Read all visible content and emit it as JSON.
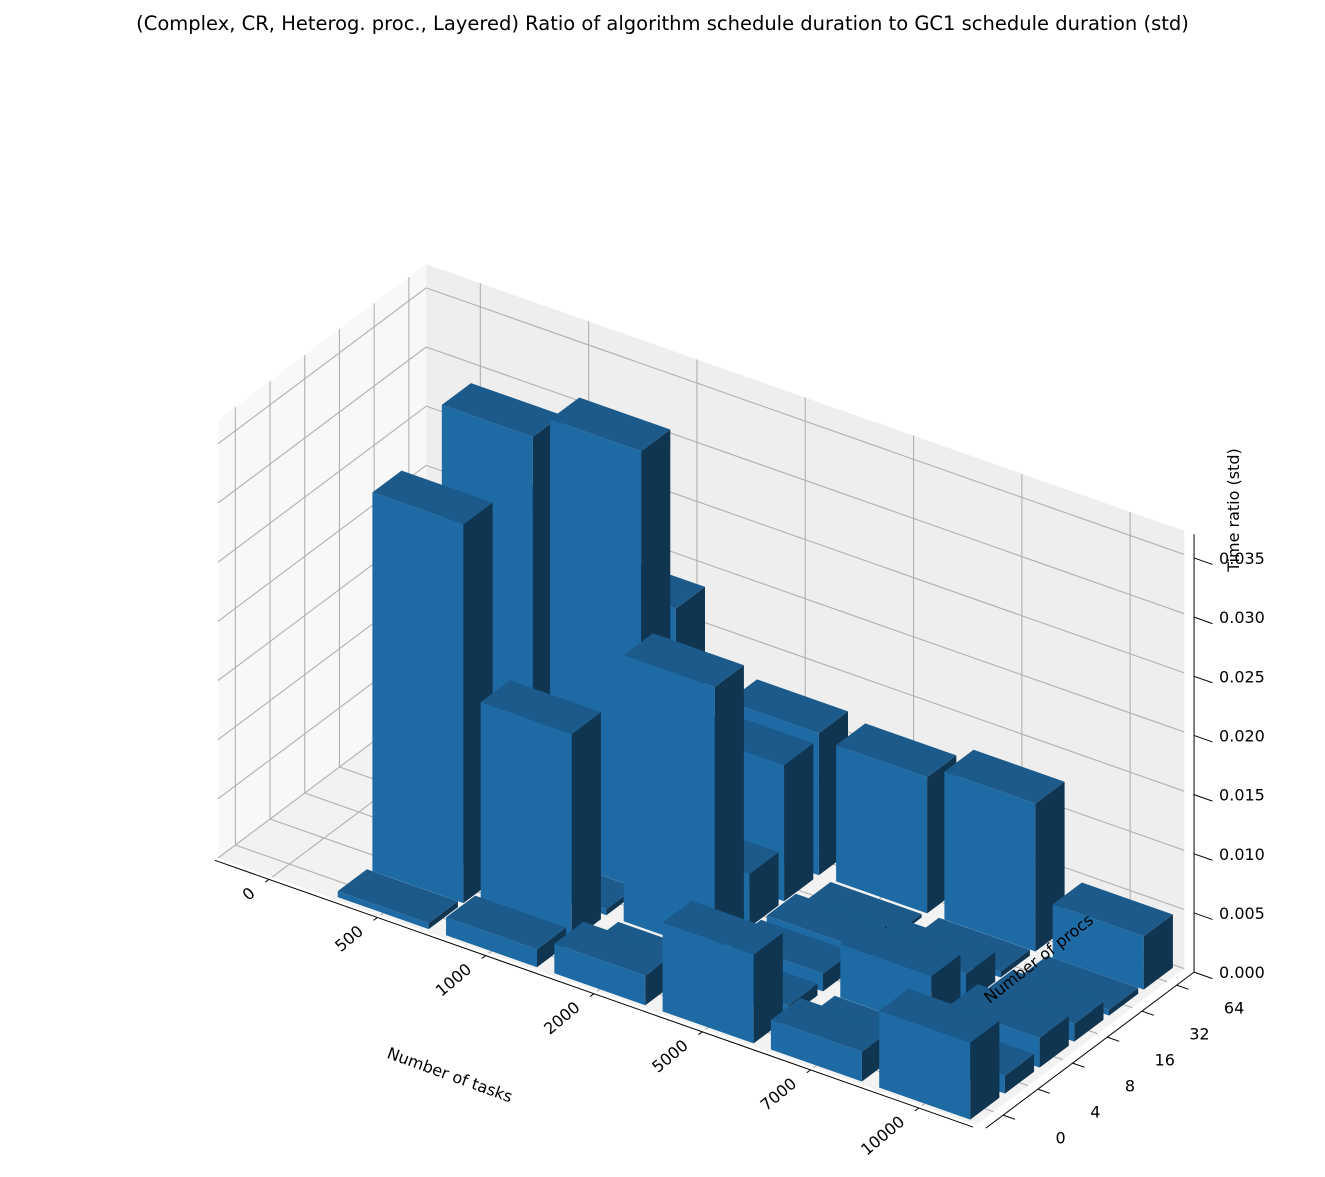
{
  "chart_data": {
    "type": "bar3d",
    "title": "(Complex, CR, Heterog. proc., Layered) Ratio of algorithm schedule duration to GC1 schedule duration (std)",
    "xlabel": "Number of tasks",
    "ylabel": "Number of procs",
    "zlabel": "Time ratio (std)",
    "x_ticks": [
      "0",
      "500",
      "1000",
      "2000",
      "5000",
      "7000",
      "10000"
    ],
    "y_ticks": [
      "0",
      "4",
      "8",
      "16",
      "32",
      "64"
    ],
    "z_ticks": [
      "0.000",
      "0.005",
      "0.010",
      "0.015",
      "0.020",
      "0.025",
      "0.030",
      "0.035"
    ],
    "zlim": [
      0,
      0.037
    ],
    "grid": true,
    "bar_color": "#1f77b4",
    "bars": [
      {
        "x": "500",
        "y": "0",
        "value": 0.0005
      },
      {
        "x": "1000",
        "y": "0",
        "value": 0.0015
      },
      {
        "x": "2000",
        "y": "0",
        "value": 0.0025
      },
      {
        "x": "5000",
        "y": "0",
        "value": 0.0075
      },
      {
        "x": "7000",
        "y": "0",
        "value": 0.0025
      },
      {
        "x": "10000",
        "y": "0",
        "value": 0.0065
      },
      {
        "x": "500",
        "y": "4",
        "value": 0.032
      },
      {
        "x": "1000",
        "y": "4",
        "value": 0.0175
      },
      {
        "x": "2000",
        "y": "4",
        "value": 0.0
      },
      {
        "x": "5000",
        "y": "4",
        "value": 0.001
      },
      {
        "x": "7000",
        "y": "4",
        "value": 0.0005
      },
      {
        "x": "10000",
        "y": "4",
        "value": 0.0015
      },
      {
        "x": "500",
        "y": "8",
        "value": 0.001
      },
      {
        "x": "1000",
        "y": "8",
        "value": 0.0005
      },
      {
        "x": "2000",
        "y": "8",
        "value": 0.0225
      },
      {
        "x": "5000",
        "y": "8",
        "value": 0.0015
      },
      {
        "x": "7000",
        "y": "8",
        "value": 0.0045
      },
      {
        "x": "10000",
        "y": "8",
        "value": 0.0025
      },
      {
        "x": "500",
        "y": "16",
        "value": 0.035
      },
      {
        "x": "1000",
        "y": "16",
        "value": 0.037
      },
      {
        "x": "2000",
        "y": "16",
        "value": 0.0045
      },
      {
        "x": "5000",
        "y": "16",
        "value": 0.0015
      },
      {
        "x": "7000",
        "y": "16",
        "value": 0.0025
      },
      {
        "x": "10000",
        "y": "16",
        "value": 0.0015
      },
      {
        "x": "500",
        "y": "32",
        "value": 0.025
      },
      {
        "x": "1000",
        "y": "32",
        "value": 0.0215
      },
      {
        "x": "2000",
        "y": "32",
        "value": 0.0115
      },
      {
        "x": "5000",
        "y": "32",
        "value": 0.0
      },
      {
        "x": "7000",
        "y": "32",
        "value": 0.0005
      },
      {
        "x": "10000",
        "y": "32",
        "value": 0.0005
      },
      {
        "x": "500",
        "y": "64",
        "value": 0.0005
      },
      {
        "x": "1000",
        "y": "64",
        "value": 0.0005
      },
      {
        "x": "2000",
        "y": "64",
        "value": 0.012
      },
      {
        "x": "5000",
        "y": "64",
        "value": 0.0115
      },
      {
        "x": "7000",
        "y": "64",
        "value": 0.0125
      },
      {
        "x": "10000",
        "y": "64",
        "value": 0.0045
      }
    ]
  }
}
